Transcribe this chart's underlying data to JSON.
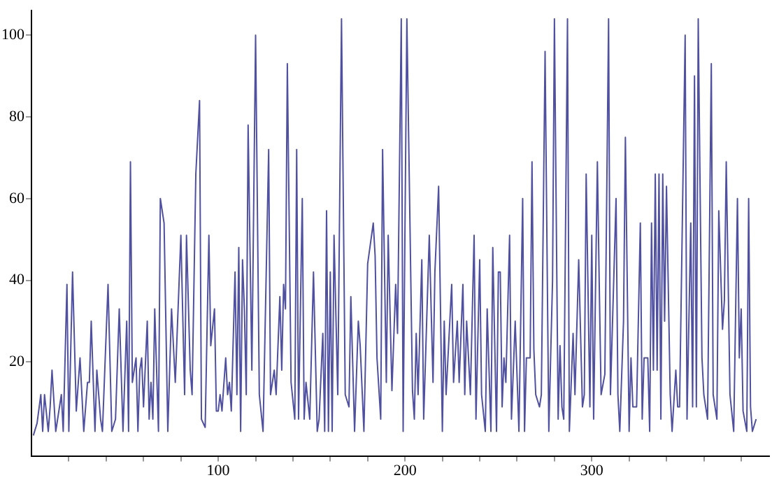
{
  "chart_data": {
    "type": "line",
    "color": "#5050a0",
    "marker": "none",
    "grid": false,
    "legend": false,
    "xlim": [
      0,
      395
    ],
    "ylim": [
      -3,
      106
    ],
    "xticks": [
      {
        "value": 20,
        "label": null
      },
      {
        "value": 40,
        "label": null
      },
      {
        "value": 60,
        "label": null
      },
      {
        "value": 80,
        "label": null
      },
      100,
      {
        "value": 120,
        "label": null
      },
      {
        "value": 140,
        "label": null
      },
      {
        "value": 160,
        "label": null
      },
      {
        "value": 180,
        "label": null
      },
      200,
      {
        "value": 220,
        "label": null
      },
      {
        "value": 240,
        "label": null
      },
      {
        "value": 260,
        "label": null
      },
      {
        "value": 280,
        "label": null
      },
      300,
      {
        "value": 320,
        "label": null
      },
      {
        "value": 340,
        "label": null
      },
      {
        "value": 360,
        "label": null
      },
      {
        "value": 380,
        "label": null
      }
    ],
    "yticks": [
      20,
      40,
      60,
      80,
      100
    ],
    "x": [
      1,
      3,
      5,
      6,
      7,
      9,
      10,
      11,
      13,
      16,
      17,
      19,
      20,
      22,
      24,
      26,
      28,
      30,
      31,
      32,
      34,
      35,
      37,
      38,
      41,
      43,
      45,
      47,
      49,
      51,
      52,
      53,
      54,
      56,
      57,
      58,
      59,
      60,
      62,
      63,
      64,
      65,
      66,
      68,
      69,
      71,
      73,
      75,
      77,
      78,
      80,
      82,
      83,
      85,
      86,
      88,
      90,
      91,
      93,
      95,
      96,
      98,
      99,
      100,
      101,
      102,
      104,
      105,
      106,
      107,
      109,
      110,
      111,
      112,
      113,
      114,
      115,
      116,
      118,
      120,
      122,
      124,
      127,
      128,
      130,
      131,
      133,
      134,
      135,
      136,
      137,
      139,
      141,
      142,
      143,
      145,
      146,
      147,
      149,
      151,
      153,
      154,
      156,
      157,
      158,
      159,
      160,
      161,
      162,
      164,
      166,
      168,
      170,
      171,
      173,
      175,
      176,
      178,
      180,
      183,
      184,
      185,
      187,
      188,
      190,
      191,
      193,
      195,
      196,
      198,
      199,
      201,
      204,
      205,
      206,
      207,
      209,
      210,
      213,
      215,
      216,
      218,
      220,
      221,
      222,
      225,
      226,
      228,
      229,
      231,
      232,
      233,
      235,
      237,
      238,
      240,
      241,
      243,
      244,
      246,
      247,
      249,
      250,
      251,
      252,
      253,
      254,
      256,
      257,
      259,
      261,
      263,
      264,
      265,
      267,
      268,
      269,
      270,
      272,
      273,
      275,
      277,
      279,
      280,
      282,
      283,
      284,
      285,
      287,
      288,
      290,
      291,
      293,
      295,
      296,
      297,
      299,
      300,
      301,
      303,
      304,
      305,
      307,
      309,
      310,
      313,
      314,
      315,
      317,
      318,
      320,
      321,
      322,
      324,
      326,
      327,
      328,
      330,
      331,
      332,
      333,
      334,
      335,
      336,
      337,
      338,
      339,
      340,
      342,
      343,
      345,
      346,
      347,
      350,
      351,
      353,
      354,
      355,
      356,
      357,
      359,
      360,
      362,
      364,
      365,
      367,
      368,
      370,
      371,
      372,
      374,
      376,
      378,
      379,
      380,
      381,
      383,
      384,
      385,
      386,
      388
    ],
    "values": [
      2,
      5,
      12,
      3,
      12,
      3,
      9,
      18,
      3,
      12,
      3,
      39,
      3,
      42,
      8,
      21,
      3,
      15,
      15,
      30,
      3,
      18,
      6,
      3,
      39,
      3,
      6,
      33,
      3,
      30,
      3,
      69,
      15,
      21,
      3,
      18,
      21,
      9,
      30,
      6,
      15,
      6,
      33,
      3,
      60,
      54,
      3,
      33,
      15,
      27,
      51,
      12,
      51,
      18,
      12,
      66,
      84,
      6,
      4,
      51,
      24,
      33,
      8,
      8,
      12,
      8,
      21,
      12,
      15,
      8,
      42,
      12,
      48,
      3,
      45,
      33,
      12,
      78,
      18,
      100,
      12,
      3,
      72,
      12,
      18,
      12,
      36,
      18,
      39,
      33,
      93,
      15,
      6,
      72,
      6,
      60,
      6,
      15,
      6,
      42,
      3,
      6,
      27,
      3,
      57,
      3,
      42,
      3,
      51,
      12,
      104,
      12,
      9,
      36,
      3,
      30,
      24,
      3,
      44,
      54,
      46,
      21,
      6,
      72,
      15,
      51,
      13,
      39,
      27,
      104,
      3,
      104,
      13,
      6,
      27,
      12,
      45,
      6,
      51,
      15,
      42,
      63,
      3,
      30,
      12,
      39,
      15,
      30,
      15,
      39,
      12,
      30,
      12,
      51,
      6,
      45,
      12,
      3,
      33,
      3,
      48,
      3,
      42,
      42,
      9,
      21,
      15,
      51,
      6,
      30,
      3,
      60,
      3,
      21,
      21,
      69,
      23,
      12,
      9,
      12,
      96,
      3,
      40,
      104,
      6,
      24,
      9,
      6,
      104,
      3,
      27,
      12,
      45,
      9,
      12,
      66,
      9,
      51,
      6,
      69,
      39,
      12,
      17,
      104,
      12,
      60,
      12,
      3,
      30,
      75,
      3,
      21,
      9,
      9,
      54,
      6,
      21,
      21,
      3,
      54,
      18,
      66,
      18,
      66,
      6,
      66,
      30,
      63,
      12,
      3,
      18,
      9,
      9,
      100,
      6,
      54,
      9,
      90,
      9,
      104,
      21,
      12,
      6,
      93,
      12,
      6,
      57,
      28,
      35,
      69,
      12,
      3,
      60,
      21,
      33,
      8,
      3,
      60,
      9,
      3,
      6
    ]
  }
}
